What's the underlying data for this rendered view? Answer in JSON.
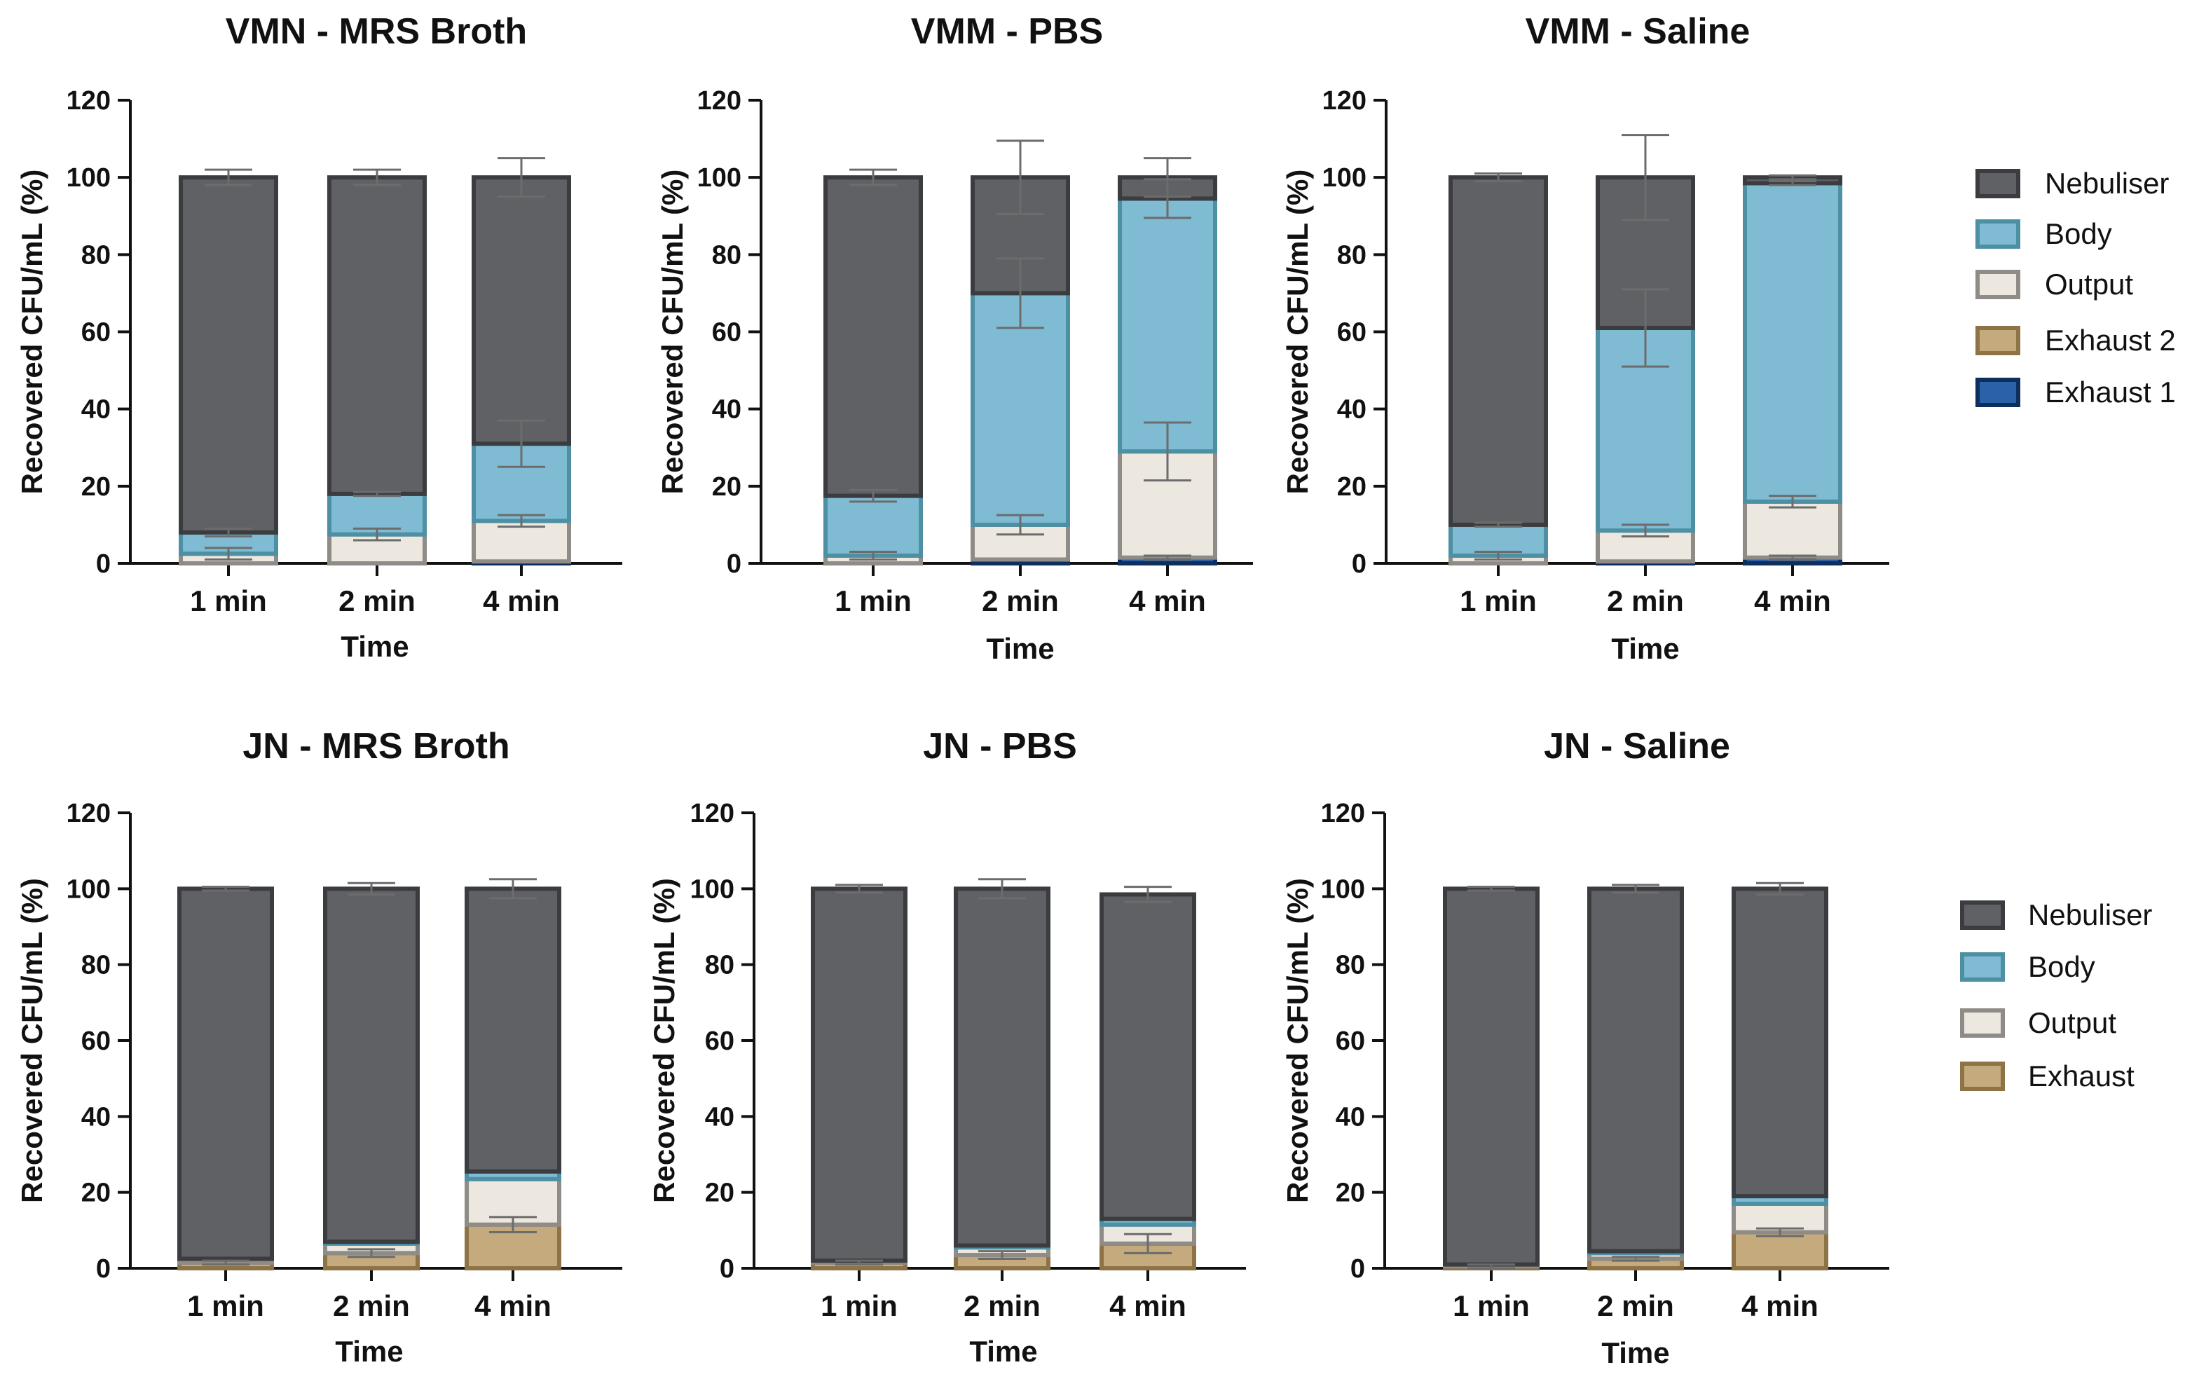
{
  "chart_data": [
    {
      "type": "bar",
      "stacked": true,
      "title": "VMN - MRS Broth",
      "xlabel": "Time",
      "ylabel": "Recovered CFU/mL (%)",
      "ylim": [
        0,
        120
      ],
      "yticks": [
        0,
        20,
        40,
        60,
        80,
        100,
        120
      ],
      "categories": [
        "1 min",
        "2 min",
        "4 min"
      ],
      "series": [
        {
          "name": "Exhaust 1",
          "values": [
            0,
            0,
            0.5
          ],
          "errors": [
            0,
            0,
            0
          ]
        },
        {
          "name": "Exhaust 2",
          "values": [
            0,
            0,
            0
          ],
          "errors": [
            0,
            0,
            0
          ]
        },
        {
          "name": "Output",
          "values": [
            2.5,
            7.5,
            10.5
          ],
          "errors": [
            1.5,
            1.5,
            1.5
          ]
        },
        {
          "name": "Body",
          "values": [
            5.5,
            10.5,
            20
          ],
          "errors": [
            1,
            0.5,
            6
          ]
        },
        {
          "name": "Nebuliser",
          "values": [
            92,
            82,
            69
          ],
          "errors": [
            2,
            2,
            5
          ]
        }
      ],
      "legend": "none"
    },
    {
      "type": "bar",
      "stacked": true,
      "title": "VMM - PBS",
      "xlabel": "Time",
      "ylabel": "Recovered CFU/mL (%)",
      "ylim": [
        0,
        120
      ],
      "yticks": [
        0,
        20,
        40,
        60,
        80,
        100,
        120
      ],
      "categories": [
        "1 min",
        "2 min",
        "4 min"
      ],
      "series": [
        {
          "name": "Exhaust 1",
          "values": [
            0,
            1,
            1.5
          ],
          "errors": [
            0,
            0,
            0.5
          ]
        },
        {
          "name": "Exhaust 2",
          "values": [
            0,
            0,
            0
          ],
          "errors": [
            0,
            0,
            0
          ]
        },
        {
          "name": "Output",
          "values": [
            2,
            9,
            27.5
          ],
          "errors": [
            1,
            2.5,
            7.5
          ]
        },
        {
          "name": "Body",
          "values": [
            15.5,
            60,
            65.5
          ],
          "errors": [
            1.5,
            9,
            5
          ]
        },
        {
          "name": "Nebuliser",
          "values": [
            82.5,
            30,
            5.5
          ],
          "errors": [
            2,
            9.5,
            5
          ]
        }
      ],
      "legend": "none"
    },
    {
      "type": "bar",
      "stacked": true,
      "title": "VMM - Saline",
      "xlabel": "Time",
      "ylabel": "Recovered CFU/mL (%)",
      "ylim": [
        0,
        120
      ],
      "yticks": [
        0,
        20,
        40,
        60,
        80,
        100,
        120
      ],
      "categories": [
        "1 min",
        "2 min",
        "4 min"
      ],
      "series": [
        {
          "name": "Exhaust 1",
          "values": [
            0,
            0.5,
            1.5
          ],
          "errors": [
            0,
            0,
            0.5
          ]
        },
        {
          "name": "Exhaust 2",
          "values": [
            0,
            0,
            0
          ],
          "errors": [
            0,
            0,
            0
          ]
        },
        {
          "name": "Output",
          "values": [
            2,
            8,
            14.5
          ],
          "errors": [
            1,
            1.5,
            1.5
          ]
        },
        {
          "name": "Body",
          "values": [
            8,
            52.5,
            82.5
          ],
          "errors": [
            0.5,
            10,
            0.5
          ]
        },
        {
          "name": "Nebuliser",
          "values": [
            90,
            39,
            1.5
          ],
          "errors": [
            1,
            11,
            0.5
          ]
        }
      ],
      "legend": "right"
    },
    {
      "type": "bar",
      "stacked": true,
      "title": "JN - MRS Broth",
      "xlabel": "Time",
      "ylabel": "Recovered CFU/mL (%)",
      "ylim": [
        0,
        120
      ],
      "yticks": [
        0,
        20,
        40,
        60,
        80,
        100,
        120
      ],
      "categories": [
        "1 min",
        "2 min",
        "4 min"
      ],
      "series": [
        {
          "name": "Exhaust",
          "values": [
            1.5,
            4,
            11.5
          ],
          "errors": [
            0.5,
            1,
            2
          ]
        },
        {
          "name": "Output",
          "values": [
            1,
            2.5,
            12
          ],
          "errors": [
            0,
            0,
            0
          ]
        },
        {
          "name": "Body",
          "values": [
            0,
            0.5,
            2
          ],
          "errors": [
            0,
            0,
            0
          ]
        },
        {
          "name": "Nebuliser",
          "values": [
            97.5,
            93,
            74.5
          ],
          "errors": [
            0.5,
            1.5,
            2.5
          ]
        }
      ],
      "legend": "none"
    },
    {
      "type": "bar",
      "stacked": true,
      "title": "JN - PBS",
      "xlabel": "Time",
      "ylabel": "Recovered CFU/mL (%)",
      "ylim": [
        0,
        120
      ],
      "yticks": [
        0,
        20,
        40,
        60,
        80,
        100,
        120
      ],
      "categories": [
        "1 min",
        "2 min",
        "4 min"
      ],
      "series": [
        {
          "name": "Exhaust",
          "values": [
            1.5,
            3.5,
            6.5
          ],
          "errors": [
            0.5,
            1,
            2.5
          ]
        },
        {
          "name": "Output",
          "values": [
            0.5,
            2,
            5
          ],
          "errors": [
            0,
            0,
            0
          ]
        },
        {
          "name": "Body",
          "values": [
            0,
            0.5,
            1.5
          ],
          "errors": [
            0,
            0,
            0
          ]
        },
        {
          "name": "Nebuliser",
          "values": [
            98,
            94,
            85.5
          ],
          "errors": [
            1,
            2.5,
            2
          ]
        }
      ],
      "legend": "none"
    },
    {
      "type": "bar",
      "stacked": true,
      "title": "JN - Saline",
      "xlabel": "Time",
      "ylabel": "Recovered CFU/mL (%)",
      "ylim": [
        0,
        120
      ],
      "yticks": [
        0,
        20,
        40,
        60,
        80,
        100,
        120
      ],
      "categories": [
        "1 min",
        "2 min",
        "4 min"
      ],
      "series": [
        {
          "name": "Exhaust",
          "values": [
            0.5,
            2.5,
            9.5
          ],
          "errors": [
            0.5,
            0.5,
            1
          ]
        },
        {
          "name": "Output",
          "values": [
            0.5,
            1.5,
            7.5
          ],
          "errors": [
            0,
            0,
            0
          ]
        },
        {
          "name": "Body",
          "values": [
            0,
            0.5,
            2
          ],
          "errors": [
            0,
            0,
            0
          ]
        },
        {
          "name": "Nebuliser",
          "values": [
            99,
            95.5,
            81
          ],
          "errors": [
            0.5,
            1,
            1.5
          ]
        }
      ],
      "legend": "right"
    }
  ],
  "legends": {
    "top": [
      "Nebuliser",
      "Body",
      "Output",
      "Exhaust 2",
      "Exhaust 1"
    ],
    "bottom": [
      "Nebuliser",
      "Body",
      "Output",
      "Exhaust"
    ]
  },
  "colors": {
    "Nebuliser": {
      "fill": "#5f6165",
      "stroke": "#3a3c40"
    },
    "Body": {
      "fill": "#7fbcd3",
      "stroke": "#4d8fa3"
    },
    "Output": {
      "fill": "#ece7df",
      "stroke": "#8f8b86"
    },
    "Exhaust 2": {
      "fill": "#c4aa7c",
      "stroke": "#8d7346"
    },
    "Exhaust": {
      "fill": "#c4aa7c",
      "stroke": "#8d7346"
    },
    "Exhaust 1": {
      "fill": "#2a61a8",
      "stroke": "#0d2f5e"
    }
  }
}
